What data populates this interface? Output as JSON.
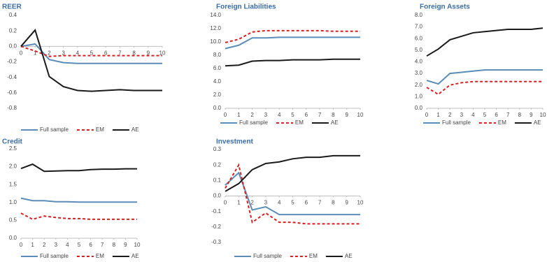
{
  "chart_data": [
    {
      "type": "line",
      "title": "REER",
      "x": [
        0,
        1,
        2,
        3,
        4,
        5,
        6,
        7,
        8,
        9,
        10
      ],
      "xlim": [
        0,
        10
      ],
      "xticks": [
        0,
        1,
        2,
        3,
        4,
        5,
        6,
        7,
        8,
        9,
        10
      ],
      "ylim": [
        -0.8,
        0.4
      ],
      "yticks": [
        {
          "value": -0.8,
          "label": "-0.8"
        },
        {
          "value": -0.6,
          "label": "-0.6"
        },
        {
          "value": -0.4,
          "label": "-0.4"
        },
        {
          "value": -0.2,
          "label": "-0.2"
        },
        {
          "value": 0,
          "label": "0.0"
        },
        0.2,
        0.4
      ],
      "legend": "bottom",
      "series": [
        {
          "name": "Full sample",
          "color": "#5b8db8",
          "style": "solid",
          "values": [
            0,
            0.03,
            -0.17,
            -0.21,
            -0.22,
            -0.22,
            -0.22,
            -0.22,
            -0.22,
            -0.22,
            -0.22
          ]
        },
        {
          "name": "EM",
          "color": "#d62020",
          "style": "dashed",
          "values": [
            0,
            -0.06,
            -0.13,
            -0.12,
            -0.12,
            -0.12,
            -0.12,
            -0.12,
            -0.12,
            -0.12,
            -0.12
          ]
        },
        {
          "name": "AE",
          "color": "#1a1a1a",
          "style": "solid",
          "values": [
            0,
            0.21,
            -0.39,
            -0.52,
            -0.57,
            -0.58,
            -0.57,
            -0.56,
            -0.57,
            -0.57,
            -0.57
          ]
        }
      ]
    },
    {
      "type": "line",
      "title": "Foreign Liabilities",
      "x": [
        0,
        1,
        2,
        3,
        4,
        5,
        6,
        7,
        8,
        9,
        10
      ],
      "xlim": [
        0,
        10
      ],
      "xticks": [
        0,
        1,
        2,
        3,
        4,
        5,
        6,
        7,
        8,
        9,
        10
      ],
      "ylim": [
        0,
        14
      ],
      "yticks": [
        {
          "value": 0,
          "label": "0.0"
        },
        {
          "value": 2,
          "label": "2.0"
        },
        {
          "value": 4,
          "label": "4.0"
        },
        {
          "value": 6,
          "label": "6.0"
        },
        {
          "value": 8,
          "label": "8.0"
        },
        {
          "value": 10,
          "label": "10.0"
        },
        {
          "value": 12,
          "label": "12.0"
        },
        {
          "value": 14,
          "label": "14.0"
        }
      ],
      "legend": "bottom",
      "series": [
        {
          "name": "Full sample",
          "color": "#5b8db8",
          "style": "solid",
          "values": [
            9.0,
            9.5,
            10.6,
            10.6,
            10.7,
            10.7,
            10.7,
            10.7,
            10.7,
            10.7,
            10.7
          ]
        },
        {
          "name": "EM",
          "color": "#d62020",
          "style": "dashed",
          "values": [
            9.9,
            10.4,
            11.5,
            11.7,
            11.7,
            11.7,
            11.7,
            11.7,
            11.6,
            11.6,
            11.6
          ]
        },
        {
          "name": "AE",
          "color": "#1a1a1a",
          "style": "solid",
          "values": [
            6.4,
            6.5,
            7.1,
            7.2,
            7.2,
            7.3,
            7.3,
            7.3,
            7.4,
            7.4,
            7.4
          ]
        }
      ]
    },
    {
      "type": "line",
      "title": "Foreign Assets",
      "x": [
        0,
        1,
        2,
        3,
        4,
        5,
        6,
        7,
        8,
        9,
        10
      ],
      "xlim": [
        0,
        10
      ],
      "xticks": [
        0,
        1,
        2,
        3,
        4,
        5,
        6,
        7,
        8,
        9,
        10
      ],
      "ylim": [
        0,
        8
      ],
      "yticks": [
        {
          "value": 0,
          "label": "0.0"
        },
        {
          "value": 1,
          "label": "1.0"
        },
        {
          "value": 2,
          "label": "2.0"
        },
        {
          "value": 3,
          "label": "3.0"
        },
        {
          "value": 4,
          "label": "4.0"
        },
        {
          "value": 5,
          "label": "5.0"
        },
        {
          "value": 6,
          "label": "6.0"
        },
        {
          "value": 7,
          "label": "7.0"
        },
        {
          "value": 8,
          "label": "8.0"
        }
      ],
      "legend": "bottom",
      "series": [
        {
          "name": "Full sample",
          "color": "#5b8db8",
          "style": "solid",
          "values": [
            2.4,
            2.1,
            3.0,
            3.1,
            3.2,
            3.3,
            3.3,
            3.3,
            3.3,
            3.3,
            3.3
          ]
        },
        {
          "name": "EM",
          "color": "#d62020",
          "style": "dashed",
          "values": [
            1.8,
            1.2,
            2.0,
            2.2,
            2.3,
            2.3,
            2.3,
            2.3,
            2.3,
            2.3,
            2.3
          ]
        },
        {
          "name": "AE",
          "color": "#1a1a1a",
          "style": "solid",
          "values": [
            4.5,
            5.1,
            5.9,
            6.2,
            6.5,
            6.6,
            6.7,
            6.8,
            6.8,
            6.8,
            6.9
          ]
        }
      ]
    },
    {
      "type": "line",
      "title": "Credit",
      "x": [
        0,
        1,
        2,
        3,
        4,
        5,
        6,
        7,
        8,
        9,
        10
      ],
      "xlim": [
        0,
        10
      ],
      "xticks": [
        0,
        1,
        2,
        3,
        4,
        5,
        6,
        7,
        8,
        9,
        10
      ],
      "ylim": [
        0,
        2.5
      ],
      "yticks": [
        {
          "value": 0,
          "label": "0.0"
        },
        0.5,
        {
          "value": 1,
          "label": "1.0"
        },
        1.5,
        {
          "value": 2,
          "label": "2.0"
        },
        2.5
      ],
      "legend": "bottom",
      "series": [
        {
          "name": "Full sample",
          "color": "#5b8db8",
          "style": "solid",
          "values": [
            1.12,
            1.05,
            1.05,
            1.02,
            1.02,
            1.01,
            1.01,
            1.01,
            1.01,
            1.01,
            1.01
          ]
        },
        {
          "name": "EM",
          "color": "#d62020",
          "style": "dashed",
          "values": [
            0.7,
            0.53,
            0.62,
            0.58,
            0.55,
            0.55,
            0.53,
            0.53,
            0.53,
            0.53,
            0.53
          ]
        },
        {
          "name": "AE",
          "color": "#1a1a1a",
          "style": "solid",
          "values": [
            1.95,
            2.07,
            1.87,
            1.88,
            1.89,
            1.89,
            1.92,
            1.93,
            1.93,
            1.94,
            1.94
          ]
        }
      ]
    },
    {
      "type": "line",
      "title": "Investment",
      "x": [
        0,
        1,
        2,
        3,
        4,
        5,
        6,
        7,
        8,
        9,
        10
      ],
      "xlim": [
        0,
        10
      ],
      "xticks": [
        0,
        1,
        2,
        3,
        4,
        5,
        6,
        7,
        8,
        9,
        10
      ],
      "ylim": [
        -0.3,
        0.3
      ],
      "yticks": [
        -0.3,
        -0.2,
        -0.1,
        {
          "value": 0,
          "label": "0.0"
        },
        0.1,
        0.2,
        0.3
      ],
      "legend": "bottom",
      "series": [
        {
          "name": "Full sample",
          "color": "#5b8db8",
          "style": "solid",
          "values": [
            0.07,
            0.15,
            -0.09,
            -0.07,
            -0.12,
            -0.12,
            -0.12,
            -0.12,
            -0.12,
            -0.12,
            -0.12
          ]
        },
        {
          "name": "EM",
          "color": "#d62020",
          "style": "dashed",
          "values": [
            0.05,
            0.2,
            -0.17,
            -0.11,
            -0.17,
            -0.17,
            -0.18,
            -0.18,
            -0.18,
            -0.18,
            -0.18
          ]
        },
        {
          "name": "AE",
          "color": "#1a1a1a",
          "style": "solid",
          "values": [
            0.03,
            0.08,
            0.17,
            0.21,
            0.22,
            0.24,
            0.25,
            0.25,
            0.26,
            0.26,
            0.26
          ]
        }
      ]
    }
  ]
}
